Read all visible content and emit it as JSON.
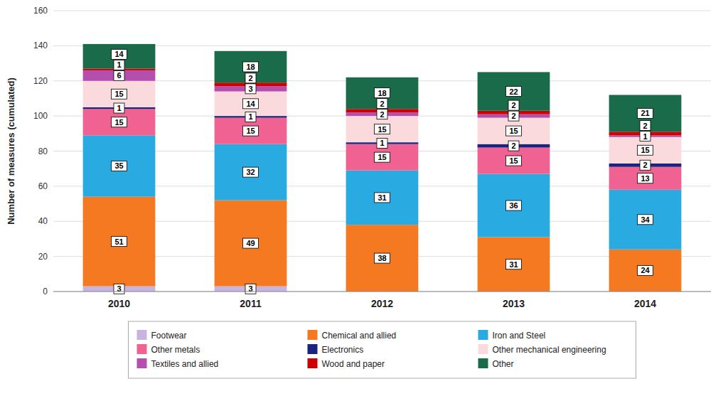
{
  "chart_data": {
    "type": "bar",
    "stacked": true,
    "categories": [
      "2010",
      "2011",
      "2012",
      "2013",
      "2014"
    ],
    "series": [
      {
        "name": "Footwear",
        "color": "#c8b4e0",
        "values": [
          3,
          3,
          0,
          0,
          0
        ]
      },
      {
        "name": "Chemical and allied",
        "color": "#f47920",
        "values": [
          51,
          49,
          38,
          31,
          24
        ]
      },
      {
        "name": "Iron and Steel",
        "color": "#29abe2",
        "values": [
          35,
          32,
          31,
          36,
          34
        ]
      },
      {
        "name": "Other metals",
        "color": "#f06292",
        "values": [
          15,
          15,
          15,
          15,
          13
        ]
      },
      {
        "name": "Electronics",
        "color": "#1a237e",
        "values": [
          1,
          1,
          1,
          2,
          2
        ]
      },
      {
        "name": "Other mechanical engineering",
        "color": "#fadadd",
        "values": [
          15,
          14,
          15,
          15,
          15
        ]
      },
      {
        "name": "Textiles and allied",
        "color": "#b44fae",
        "values": [
          6,
          3,
          2,
          2,
          1
        ]
      },
      {
        "name": "Wood and paper",
        "color": "#cc0000",
        "values": [
          1,
          2,
          2,
          2,
          2
        ]
      },
      {
        "name": "Other",
        "color": "#1a6b4a",
        "values": [
          14,
          18,
          18,
          22,
          21
        ]
      }
    ],
    "y_label": "Number of measures (cumulated)",
    "ylim": [
      0,
      160
    ],
    "yticks": [
      0,
      20,
      40,
      60,
      80,
      100,
      120,
      140,
      160
    ],
    "grid": true,
    "data_labels": true,
    "legend": "bottom"
  }
}
